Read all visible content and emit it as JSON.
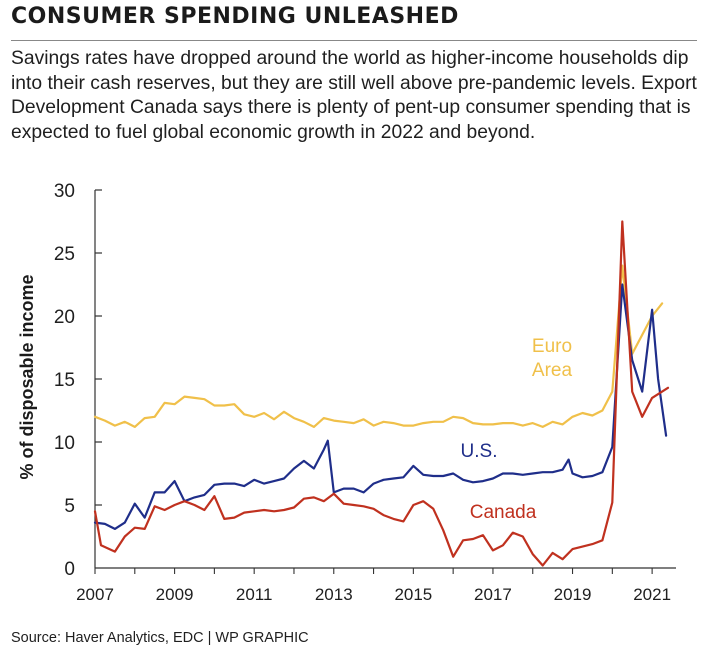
{
  "title": "CONSUMER SPENDING UNLEASHED",
  "subtitle": "Savings rates have dropped around the world as higher-income households dip into their cash reserves, but they are still well above pre-pandemic levels. Export Development Canada says there is plenty of pent-up consumer spending that is expected to fuel global economic growth in 2022 and beyond.",
  "source": "Source: Haver Analytics, EDC  |  WP GRAPHIC",
  "chart_data": {
    "type": "line",
    "title": "",
    "xlabel": "",
    "ylabel": "% of disposable income",
    "ylim": [
      0,
      30
    ],
    "xlim": [
      2007,
      2021.6
    ],
    "yticks": [
      0,
      5,
      10,
      15,
      20,
      25,
      30
    ],
    "xticks": [
      2007,
      2009,
      2011,
      2013,
      2015,
      2017,
      2019,
      2021
    ],
    "grid": false,
    "series": [
      {
        "name": "Euro Area",
        "label_lines": [
          "Euro",
          "Area"
        ],
        "color": "#f0c04a",
        "x": [
          2007,
          2007.25,
          2007.5,
          2007.75,
          2008,
          2008.25,
          2008.5,
          2008.75,
          2009,
          2009.25,
          2009.5,
          2009.75,
          2010,
          2010.25,
          2010.5,
          2010.75,
          2011,
          2011.25,
          2011.5,
          2011.75,
          2012,
          2012.25,
          2012.5,
          2012.75,
          2013,
          2013.25,
          2013.5,
          2013.75,
          2014,
          2014.25,
          2014.5,
          2014.75,
          2015,
          2015.25,
          2015.5,
          2015.75,
          2016,
          2016.25,
          2016.5,
          2016.75,
          2017,
          2017.25,
          2017.5,
          2017.75,
          2018,
          2018.25,
          2018.5,
          2018.75,
          2019,
          2019.25,
          2019.5,
          2019.75,
          2020,
          2020.25,
          2020.5,
          2020.75,
          2021,
          2021.25
        ],
        "values": [
          12.0,
          11.7,
          11.3,
          11.6,
          11.2,
          11.9,
          12.0,
          13.1,
          13.0,
          13.6,
          13.5,
          13.4,
          12.9,
          12.9,
          13.0,
          12.2,
          12.0,
          12.3,
          11.8,
          12.4,
          11.9,
          11.6,
          11.2,
          11.9,
          11.7,
          11.6,
          11.5,
          11.8,
          11.3,
          11.6,
          11.5,
          11.3,
          11.3,
          11.5,
          11.6,
          11.6,
          12.0,
          11.9,
          11.5,
          11.4,
          11.4,
          11.5,
          11.5,
          11.3,
          11.5,
          11.2,
          11.6,
          11.4,
          12.0,
          12.3,
          12.1,
          12.5,
          14.0,
          24.0,
          17.0,
          18.5,
          20.0,
          21.0
        ]
      },
      {
        "name": "U.S.",
        "color": "#1f2e8a",
        "x": [
          2007,
          2007.25,
          2007.5,
          2007.75,
          2008,
          2008.25,
          2008.5,
          2008.75,
          2009,
          2009.25,
          2009.5,
          2009.75,
          2010,
          2010.25,
          2010.5,
          2010.75,
          2011,
          2011.25,
          2011.5,
          2011.75,
          2012,
          2012.25,
          2012.5,
          2012.75,
          2012.85,
          2013,
          2013.25,
          2013.5,
          2013.75,
          2014,
          2014.25,
          2014.5,
          2014.75,
          2015,
          2015.25,
          2015.5,
          2015.75,
          2016,
          2016.25,
          2016.5,
          2016.75,
          2017,
          2017.25,
          2017.5,
          2017.75,
          2018,
          2018.25,
          2018.5,
          2018.75,
          2018.9,
          2019,
          2019.25,
          2019.5,
          2019.75,
          2020,
          2020.25,
          2020.5,
          2020.75,
          2021,
          2021.15,
          2021.35
        ],
        "values": [
          3.6,
          3.5,
          3.1,
          3.6,
          5.1,
          4.0,
          6.0,
          6.0,
          6.9,
          5.3,
          5.6,
          5.8,
          6.6,
          6.7,
          6.7,
          6.5,
          7.0,
          6.7,
          6.9,
          7.1,
          7.9,
          8.5,
          7.9,
          9.4,
          10.1,
          6.0,
          6.3,
          6.3,
          6.0,
          6.7,
          7.0,
          7.1,
          7.2,
          8.1,
          7.4,
          7.3,
          7.3,
          7.5,
          7.0,
          6.8,
          6.9,
          7.1,
          7.5,
          7.5,
          7.4,
          7.5,
          7.6,
          7.6,
          7.8,
          8.6,
          7.5,
          7.2,
          7.3,
          7.6,
          9.6,
          22.5,
          16.5,
          14.0,
          20.5,
          15.0,
          10.5
        ]
      },
      {
        "name": "Canada",
        "color": "#c0311f",
        "x": [
          2007,
          2007.15,
          2007.5,
          2007.75,
          2008,
          2008.25,
          2008.5,
          2008.75,
          2009,
          2009.25,
          2009.5,
          2009.75,
          2010,
          2010.25,
          2010.5,
          2010.75,
          2011,
          2011.25,
          2011.5,
          2011.75,
          2012,
          2012.25,
          2012.5,
          2012.75,
          2013,
          2013.25,
          2013.5,
          2013.75,
          2014,
          2014.25,
          2014.5,
          2014.75,
          2015,
          2015.25,
          2015.5,
          2015.75,
          2016,
          2016.25,
          2016.5,
          2016.75,
          2017,
          2017.25,
          2017.5,
          2017.75,
          2018,
          2018.25,
          2018.5,
          2018.75,
          2019,
          2019.25,
          2019.5,
          2019.75,
          2020,
          2020.25,
          2020.5,
          2020.75,
          2021,
          2021.4
        ],
        "values": [
          4.5,
          1.8,
          1.3,
          2.5,
          3.2,
          3.1,
          4.9,
          4.6,
          5.0,
          5.3,
          5.0,
          4.6,
          5.7,
          3.9,
          4.0,
          4.4,
          4.5,
          4.6,
          4.5,
          4.6,
          4.8,
          5.5,
          5.6,
          5.3,
          5.9,
          5.1,
          5.0,
          4.9,
          4.7,
          4.2,
          3.9,
          3.7,
          5.0,
          5.3,
          4.7,
          3.0,
          0.9,
          2.2,
          2.3,
          2.6,
          1.4,
          1.8,
          2.8,
          2.5,
          1.1,
          0.2,
          1.2,
          0.7,
          1.5,
          1.7,
          1.9,
          2.2,
          5.2,
          27.5,
          14.0,
          12.0,
          13.5,
          14.3
        ]
      }
    ]
  }
}
